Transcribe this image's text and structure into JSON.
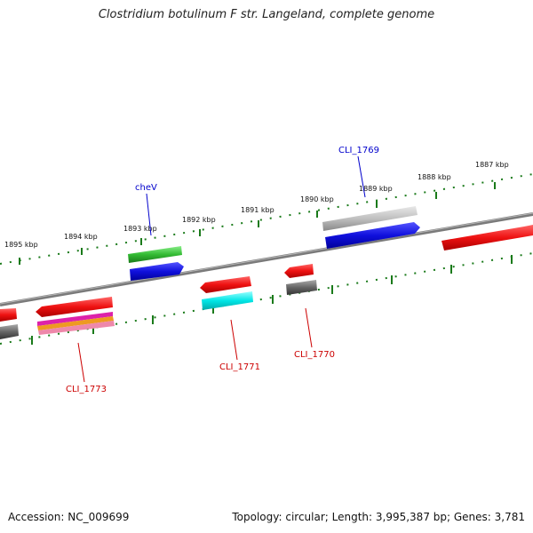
{
  "title": "Clostridium botulinum F str. Langeland, complete genome",
  "footer": {
    "accession": "Accession: NC_009699",
    "summary": "Topology: circular; Length: 3,995,387 bp; Genes: 3,781"
  },
  "scale_labels": [
    "1895 kbp",
    "1894 kbp",
    "1893 kbp",
    "1892 kbp",
    "1891 kbp",
    "1890 kbp",
    "1889 kbp",
    "1888 kbp",
    "1887 kbp"
  ],
  "gene_labels": {
    "forward": [
      "cheV",
      "CLI_1769"
    ],
    "reverse": [
      "CLI_1773",
      "CLI_1771",
      "CLI_1770"
    ]
  },
  "colors": {
    "backbone": "#808080",
    "scale_ticks": "#1a7a1a",
    "forward_label": "#0000cc",
    "reverse_label": "#cc0000",
    "red": "#ee1111",
    "blue": "#1010dd",
    "green": "#33bb33",
    "gray": "#666666",
    "lightgray": "#c0c0c0",
    "cyan": "#00e5e5",
    "magenta": "#dd22aa",
    "orange": "#ee9922",
    "pink": "#ee88aa"
  }
}
